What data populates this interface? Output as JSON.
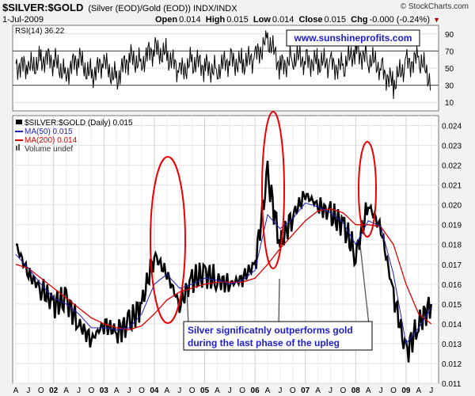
{
  "header": {
    "symbol": "$SILVER:$GOLD",
    "subtitle": "(Silver (EOD)/Gold (EOD)) INDX/INDX",
    "date": "1-Jul-2009",
    "open_label": "Open",
    "open": "0.014",
    "high_label": "High",
    "high": "0.015",
    "low_label": "Low",
    "low": "0.014",
    "close_label": "Close",
    "close": "0.015",
    "chg_label": "Chg",
    "chg": "-0.000 (-0.24%)",
    "copyright": "© StockCharts.com"
  },
  "colors": {
    "price": "#000000",
    "down_bar": "#b0003a",
    "ma50": "#1f1fbf",
    "ma200": "#dd0000",
    "annotation": "#1c1ccc",
    "panel_bg": "#ffffff"
  },
  "chart_data": [
    {
      "type": "line",
      "panel": "indicator",
      "legend_label": "RSI(14) 36.22",
      "watermark": "www.sunshineprofits.com",
      "ylim": [
        0,
        100
      ],
      "yticks": [
        10,
        30,
        50,
        70,
        90
      ],
      "reference_lines": [
        30,
        70
      ],
      "x": [
        "2001-04",
        "2001-07",
        "2001-10",
        "2002-01",
        "2002-04",
        "2002-07",
        "2002-10",
        "2003-01",
        "2003-04",
        "2003-07",
        "2003-10",
        "2004-01",
        "2004-04",
        "2004-07",
        "2004-10",
        "2005-01",
        "2005-04",
        "2005-07",
        "2005-10",
        "2006-01",
        "2006-04",
        "2006-07",
        "2006-10",
        "2007-01",
        "2007-04",
        "2007-07",
        "2007-10",
        "2008-01",
        "2008-04",
        "2008-07",
        "2008-10",
        "2009-01",
        "2009-04",
        "2009-07"
      ],
      "values": [
        55,
        48,
        62,
        58,
        45,
        60,
        42,
        55,
        38,
        62,
        58,
        72,
        66,
        45,
        58,
        52,
        48,
        60,
        55,
        62,
        85,
        52,
        62,
        60,
        56,
        55,
        50,
        72,
        60,
        52,
        30,
        56,
        60,
        36
      ]
    },
    {
      "type": "line",
      "panel": "price",
      "title": "$SILVER:$GOLD (Daily) 0.015",
      "ylim": [
        0.011,
        0.0245
      ],
      "yticks": [
        0.011,
        0.012,
        0.013,
        0.014,
        0.015,
        0.016,
        0.017,
        0.018,
        0.019,
        0.02,
        0.021,
        0.022,
        0.023,
        0.024
      ],
      "x_tick_labels": [
        "A",
        "J",
        "O",
        "02",
        "A",
        "J",
        "O",
        "03",
        "A",
        "J",
        "O",
        "04",
        "A",
        "J",
        "O",
        "05",
        "A",
        "J",
        "O",
        "06",
        "A",
        "J",
        "O",
        "07",
        "A",
        "J",
        "O",
        "08",
        "A",
        "J",
        "O",
        "09",
        "A",
        "J"
      ],
      "year_labels": [
        "02",
        "03",
        "04",
        "05",
        "06",
        "07",
        "08",
        "09"
      ],
      "x": [
        "2001-04",
        "2001-07",
        "2001-10",
        "2002-01",
        "2002-04",
        "2002-07",
        "2002-10",
        "2003-01",
        "2003-04",
        "2003-07",
        "2003-10",
        "2004-01",
        "2004-04",
        "2004-07",
        "2004-10",
        "2005-01",
        "2005-04",
        "2005-07",
        "2005-10",
        "2006-01",
        "2006-04",
        "2006-07",
        "2006-10",
        "2007-01",
        "2007-04",
        "2007-07",
        "2007-10",
        "2008-01",
        "2008-04",
        "2008-07",
        "2008-10",
        "2009-01",
        "2009-04",
        "2009-07"
      ],
      "series": [
        {
          "name": "$SILVER:$GOLD (Daily) 0.015",
          "values": [
            0.018,
            0.0165,
            0.0158,
            0.015,
            0.0152,
            0.014,
            0.0132,
            0.014,
            0.0136,
            0.014,
            0.015,
            0.0175,
            0.0165,
            0.015,
            0.0162,
            0.0165,
            0.0162,
            0.016,
            0.0163,
            0.017,
            0.0215,
            0.018,
            0.0195,
            0.0205,
            0.02,
            0.0195,
            0.019,
            0.0175,
            0.02,
            0.0188,
            0.0155,
            0.0125,
            0.014,
            0.015
          ]
        },
        {
          "name": "MA(50) 0.015",
          "values": [
            0.0175,
            0.0168,
            0.016,
            0.0153,
            0.015,
            0.0145,
            0.0138,
            0.0138,
            0.0137,
            0.0138,
            0.0145,
            0.016,
            0.0165,
            0.0158,
            0.016,
            0.0163,
            0.0162,
            0.016,
            0.0162,
            0.0167,
            0.0195,
            0.0188,
            0.0193,
            0.0201,
            0.0199,
            0.0196,
            0.0191,
            0.018,
            0.0192,
            0.0189,
            0.0165,
            0.013,
            0.0138,
            0.0148
          ]
        },
        {
          "name": "MA(200) 0.014",
          "values": [
            0.017,
            0.0168,
            0.0163,
            0.0158,
            0.0153,
            0.0148,
            0.0143,
            0.014,
            0.0138,
            0.0137,
            0.0139,
            0.0145,
            0.0152,
            0.0156,
            0.0158,
            0.016,
            0.0161,
            0.0161,
            0.0161,
            0.0163,
            0.017,
            0.0178,
            0.0185,
            0.0192,
            0.0197,
            0.0198,
            0.0196,
            0.019,
            0.019,
            0.0189,
            0.018,
            0.016,
            0.0145,
            0.014
          ]
        }
      ],
      "volume_label": "Volume undef",
      "annotation": {
        "line1": "Silver significatnly outperforms gold",
        "line2": "during the last phase of the upleg"
      }
    }
  ]
}
